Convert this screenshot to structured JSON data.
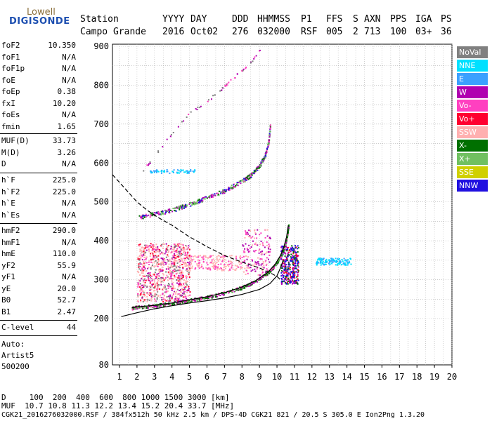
{
  "logo": {
    "line1": "Lowell",
    "line2": "DIGISONDE"
  },
  "header": {
    "labels": [
      "Station",
      "YYYY",
      "DAY",
      "DDD",
      "HHMMSS",
      "P1",
      "FFS",
      "S",
      "AXN",
      "PPS",
      "IGA",
      "PS"
    ],
    "values": [
      "Campo Grande",
      "2016",
      "Oct02",
      "276",
      "032000",
      "RSF",
      "005",
      "2",
      "713",
      "100",
      "03+",
      "36"
    ]
  },
  "params_group1": [
    {
      "k": "foF2",
      "v": "10.350"
    },
    {
      "k": "foF1",
      "v": "N/A"
    },
    {
      "k": "foF1p",
      "v": "N/A"
    },
    {
      "k": "foE",
      "v": "N/A"
    },
    {
      "k": "foEp",
      "v": "0.38"
    },
    {
      "k": "fxI",
      "v": "10.20"
    },
    {
      "k": "foEs",
      "v": "N/A"
    },
    {
      "k": "fmin",
      "v": "1.65"
    }
  ],
  "params_group2": [
    {
      "k": "MUF(D)",
      "v": "33.73"
    },
    {
      "k": "M(D)",
      "v": "3.26"
    },
    {
      "k": "D",
      "v": "N/A"
    }
  ],
  "params_group3": [
    {
      "k": "h`F",
      "v": "225.0"
    },
    {
      "k": "h`F2",
      "v": "225.0"
    },
    {
      "k": "h`E",
      "v": "N/A"
    },
    {
      "k": "h`Es",
      "v": "N/A"
    }
  ],
  "params_group4": [
    {
      "k": "hmF2",
      "v": "290.0"
    },
    {
      "k": "hmF1",
      "v": "N/A"
    },
    {
      "k": "hmE",
      "v": "110.0"
    },
    {
      "k": "yF2",
      "v": "55.9"
    },
    {
      "k": "yF1",
      "v": "N/A"
    },
    {
      "k": "yE",
      "v": "20.0"
    },
    {
      "k": "B0",
      "v": "52.7"
    },
    {
      "k": "B1",
      "v": "2.47"
    }
  ],
  "params_group5": [
    {
      "k": "C-level",
      "v": "44"
    }
  ],
  "auto": {
    "line1": "Auto:",
    "line2": "Artist5",
    "line3": "500200"
  },
  "legend": [
    {
      "label": "NoVal",
      "color": "#808080"
    },
    {
      "label": "NNE",
      "color": "#00e0ff"
    },
    {
      "label": "E",
      "color": "#3aa0ff"
    },
    {
      "label": "W",
      "color": "#b000b0"
    },
    {
      "label": "Vo-",
      "color": "#ff40c0"
    },
    {
      "label": "Vo+",
      "color": "#ff0030"
    },
    {
      "label": "SSW",
      "color": "#ffb0b0"
    },
    {
      "label": "X-",
      "color": "#007000"
    },
    {
      "label": "X+",
      "color": "#70c060"
    },
    {
      "label": "SSE",
      "color": "#d0d000"
    },
    {
      "label": "NNW",
      "color": "#2010e0"
    }
  ],
  "footer": {
    "d_line": "D     100  200  400  600  800 1000 1500 3000 [km]",
    "muf_line": "MUF  10.7 10.8 11.3 12.2 13.4 15.2 20.4 33.7 [MHz]",
    "file_line": "CGK21_2016276032000.RSF / 384fx512h 50 kHz 2.5 km / DPS-4D CGK21 821 / 20.5 S 305.0 E Ion2Png 1.3.20"
  },
  "chart_data": {
    "type": "scatter",
    "x_ticks": [
      1,
      2,
      3,
      4,
      5,
      6,
      7,
      8,
      9,
      10,
      11,
      12,
      13,
      14,
      15,
      16,
      17,
      18,
      19,
      20
    ],
    "y_ticks": [
      80,
      200,
      300,
      400,
      500,
      600,
      700,
      800,
      900
    ],
    "xlim": [
      0.5,
      20.2
    ],
    "ylim_labels": [
      "80",
      "900"
    ],
    "grid": true,
    "profile_solid": {
      "x": [
        1.1,
        2,
        3,
        4,
        5,
        6,
        7,
        8,
        9,
        9.6,
        10,
        10.2,
        10.35
      ],
      "y": [
        205,
        215,
        225,
        233,
        240,
        246,
        253,
        262,
        275,
        290,
        310,
        330,
        350
      ]
    },
    "trace_f2": {
      "x": [
        1.7,
        2,
        3,
        4,
        5,
        6,
        7,
        8,
        8.8,
        9.5,
        9.9,
        10.2,
        10.4,
        10.55,
        10.65
      ],
      "y": [
        228,
        230,
        234,
        240,
        248,
        256,
        267,
        281,
        298,
        320,
        340,
        362,
        385,
        410,
        440
      ]
    },
    "dashed_profile": {
      "x": [
        0.6,
        1.2,
        2,
        2.6,
        3.2,
        4,
        5,
        6,
        7,
        8,
        9,
        9.6,
        10,
        10.25
      ],
      "y": [
        570,
        540,
        500,
        478,
        460,
        440,
        410,
        385,
        362,
        345,
        330,
        318,
        308,
        298
      ]
    },
    "multihop_trace": {
      "x": [
        2.1,
        3,
        4,
        5,
        6,
        7,
        8,
        8.5,
        9,
        9.3,
        9.5,
        9.6
      ],
      "y": [
        462,
        470,
        480,
        495,
        512,
        530,
        555,
        570,
        595,
        620,
        655,
        700
      ]
    },
    "high_trace": {
      "x": [
        2.3,
        3,
        4,
        5,
        6,
        6.5,
        7,
        7.5,
        8,
        8.5,
        9
      ],
      "y": [
        580,
        620,
        680,
        730,
        760,
        780,
        800,
        820,
        840,
        860,
        890
      ]
    }
  }
}
